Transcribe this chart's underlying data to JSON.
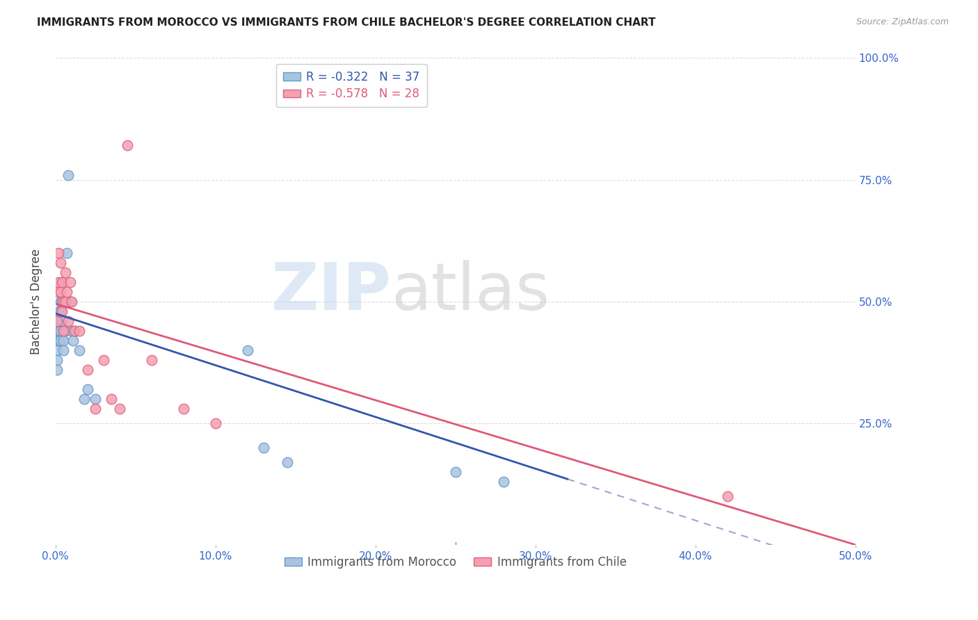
{
  "title": "IMMIGRANTS FROM MOROCCO VS IMMIGRANTS FROM CHILE BACHELOR'S DEGREE CORRELATION CHART",
  "source": "Source: ZipAtlas.com",
  "ylabel": "Bachelor's Degree",
  "xlim": [
    0.0,
    0.5
  ],
  "ylim": [
    0.0,
    1.0
  ],
  "xtick_labels": [
    "0.0%",
    "10.0%",
    "20.0%",
    "30.0%",
    "40.0%",
    "50.0%"
  ],
  "xtick_vals": [
    0.0,
    0.1,
    0.2,
    0.3,
    0.4,
    0.5
  ],
  "ytick_vals": [
    0.25,
    0.5,
    0.75,
    1.0
  ],
  "right_ytick_labels": [
    "100.0%",
    "75.0%",
    "50.0%",
    "25.0%"
  ],
  "right_ytick_vals": [
    1.0,
    0.75,
    0.5,
    0.25
  ],
  "legend1_label": "R = -0.322   N = 37",
  "legend2_label": "R = -0.578   N = 28",
  "morocco_color": "#a8c4e0",
  "chile_color": "#f4a0b0",
  "morocco_edge_color": "#6699cc",
  "chile_edge_color": "#e06080",
  "trend_morocco_color": "#3355aa",
  "trend_chile_color": "#e05878",
  "morocco_x": [
    0.001,
    0.001,
    0.001,
    0.001,
    0.001,
    0.002,
    0.002,
    0.002,
    0.002,
    0.003,
    0.003,
    0.003,
    0.003,
    0.003,
    0.004,
    0.004,
    0.004,
    0.005,
    0.005,
    0.005,
    0.006,
    0.006,
    0.007,
    0.008,
    0.009,
    0.01,
    0.011,
    0.012,
    0.015,
    0.018,
    0.02,
    0.025,
    0.12,
    0.13,
    0.145,
    0.25,
    0.28
  ],
  "morocco_y": [
    0.44,
    0.42,
    0.4,
    0.38,
    0.36,
    0.48,
    0.46,
    0.44,
    0.42,
    0.5,
    0.48,
    0.46,
    0.44,
    0.42,
    0.54,
    0.5,
    0.46,
    0.44,
    0.42,
    0.4,
    0.44,
    0.5,
    0.6,
    0.76,
    0.5,
    0.44,
    0.42,
    0.44,
    0.4,
    0.3,
    0.32,
    0.3,
    0.4,
    0.2,
    0.17,
    0.15,
    0.13
  ],
  "chile_x": [
    0.001,
    0.001,
    0.002,
    0.002,
    0.003,
    0.003,
    0.004,
    0.004,
    0.005,
    0.005,
    0.006,
    0.006,
    0.007,
    0.008,
    0.009,
    0.01,
    0.012,
    0.015,
    0.02,
    0.025,
    0.03,
    0.035,
    0.04,
    0.045,
    0.06,
    0.08,
    0.1,
    0.42
  ],
  "chile_y": [
    0.52,
    0.46,
    0.6,
    0.54,
    0.58,
    0.52,
    0.54,
    0.48,
    0.5,
    0.44,
    0.56,
    0.5,
    0.52,
    0.46,
    0.54,
    0.5,
    0.44,
    0.44,
    0.36,
    0.28,
    0.38,
    0.3,
    0.28,
    0.82,
    0.38,
    0.28,
    0.25,
    0.1
  ],
  "trend_morocco_x0": 0.0,
  "trend_morocco_x1": 0.32,
  "trend_morocco_y0": 0.475,
  "trend_morocco_y1": 0.135,
  "trend_chile_x0": 0.0,
  "trend_chile_x1": 0.5,
  "trend_chile_y0": 0.495,
  "trend_chile_y1": 0.0,
  "legend_morocco_label": "Immigrants from Morocco",
  "legend_chile_label": "Immigrants from Chile"
}
